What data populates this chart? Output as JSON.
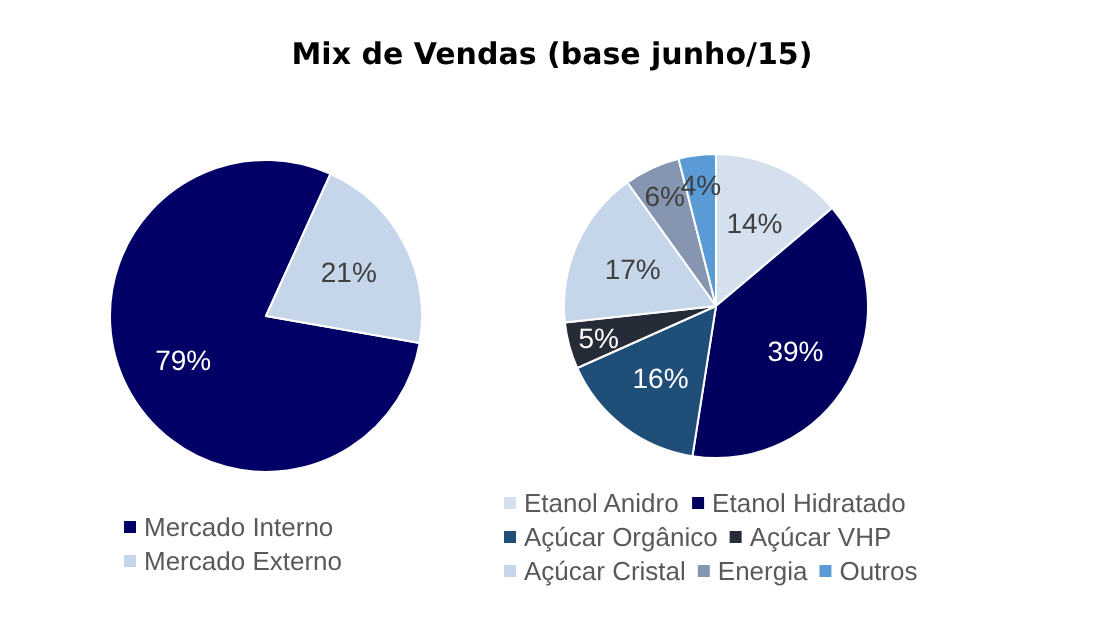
{
  "chart_data": [
    {
      "type": "pie",
      "title": "Mix de Vendas (base junho/15)",
      "categories": [
        "Mercado Interno",
        "Mercado Externo"
      ],
      "values": [
        79,
        21
      ],
      "colors": [
        "#000066",
        "#c5d5ea"
      ],
      "value_labels": [
        "79%",
        "21%"
      ],
      "legend": "bottom"
    },
    {
      "type": "pie",
      "categories": [
        "Etanol Anidro",
        "Etanol Hidratado",
        "Açúcar Orgânico",
        "Açúcar VHP",
        "Açúcar Cristal",
        "Energia",
        "Outros"
      ],
      "values": [
        14,
        39,
        16,
        5,
        17,
        6,
        4
      ],
      "colors": [
        "#d4e0ee",
        "#00005e",
        "#1f4e79",
        "#262b38",
        "#c5d5ea",
        "#8696b0",
        "#5b9bd5"
      ],
      "value_labels": [
        "14%",
        "39%",
        "16%",
        "5%",
        "17%",
        "6%",
        "4%"
      ],
      "legend": "bottom"
    }
  ]
}
